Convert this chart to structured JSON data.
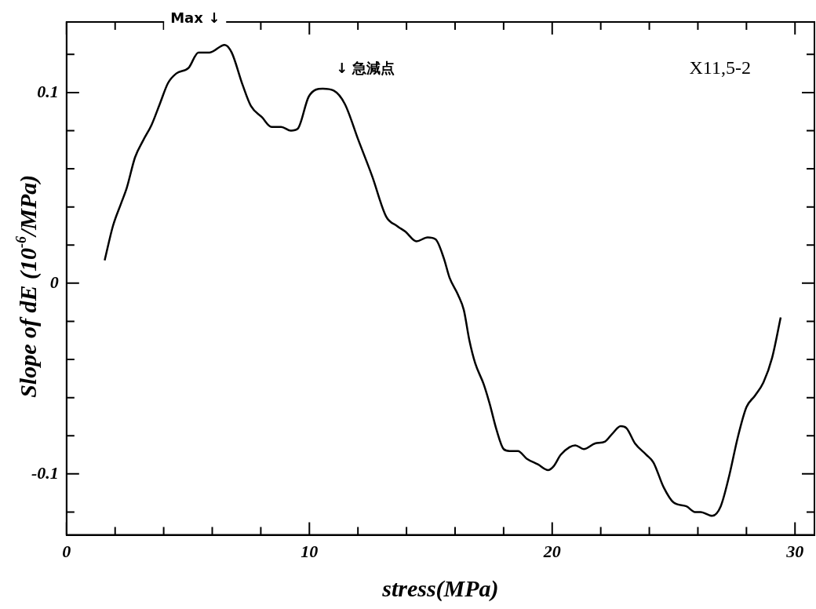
{
  "chart_data": {
    "type": "line",
    "xlabel": "stress(MPa)",
    "ylabel": "Slope of dE (10$^{-6}$/MPa)",
    "annotations": [
      "Max ↓",
      "↓ 急減点",
      "X11,5-2"
    ],
    "x": [
      1.57,
      1.91,
      2.25,
      2.48,
      2.82,
      3.16,
      3.5,
      3.84,
      4.18,
      4.52,
      5.03,
      5.43,
      5.89,
      6.51,
      6.8,
      7.25,
      7.59,
      8.05,
      8.44,
      8.84,
      9.24,
      9.52,
      9.98,
      10.55,
      11.0,
      11.46,
      12.02,
      12.59,
      13.16,
      13.61,
      13.96,
      14.41,
      14.87,
      15.2,
      15.54,
      15.77,
      16.12,
      16.36,
      16.59,
      16.83,
      17.18,
      17.42,
      17.71,
      18.0,
      18.24,
      18.59,
      18.95,
      19.41,
      19.83,
      20.06,
      20.35,
      20.71,
      20.95,
      21.3,
      21.77,
      22.18,
      22.47,
      22.82,
      23.06,
      23.41,
      23.88,
      24.17,
      24.59,
      25.0,
      25.53,
      25.88,
      26.11,
      26.59,
      26.94,
      27.29,
      27.64,
      28.0,
      28.35,
      28.7,
      29.06,
      29.41
    ],
    "series": [
      {
        "color": "#000000",
        "values": [
          0.012,
          0.03,
          0.042,
          0.05,
          0.066,
          0.075,
          0.083,
          0.094,
          0.105,
          0.11,
          0.113,
          0.121,
          0.121,
          0.125,
          0.121,
          0.104,
          0.093,
          0.087,
          0.082,
          0.082,
          0.08,
          0.081,
          0.098,
          0.102,
          0.101,
          0.094,
          0.075,
          0.056,
          0.035,
          0.03,
          0.027,
          0.022,
          0.024,
          0.023,
          0.013,
          0.003,
          -0.006,
          -0.014,
          -0.03,
          -0.042,
          -0.053,
          -0.063,
          -0.077,
          -0.087,
          -0.088,
          -0.088,
          -0.092,
          -0.095,
          -0.098,
          -0.096,
          -0.09,
          -0.086,
          -0.085,
          -0.087,
          -0.084,
          -0.083,
          -0.079,
          -0.075,
          -0.076,
          -0.084,
          -0.09,
          -0.094,
          -0.107,
          -0.115,
          -0.117,
          -0.12,
          -0.12,
          -0.122,
          -0.117,
          -0.101,
          -0.081,
          -0.065,
          -0.059,
          -0.052,
          -0.039,
          -0.018
        ]
      }
    ],
    "xlim": [
      0,
      30.8
    ],
    "xticks": [
      0,
      {
        "value": 2,
        "label": null
      },
      {
        "value": 4,
        "label": null
      },
      {
        "value": 6,
        "label": null
      },
      {
        "value": 8,
        "label": null
      },
      10,
      {
        "value": 12,
        "label": null
      },
      {
        "value": 14,
        "label": null
      },
      {
        "value": 16,
        "label": null
      },
      {
        "value": 18,
        "label": null
      },
      20,
      {
        "value": 22,
        "label": null
      },
      {
        "value": 24,
        "label": null
      },
      {
        "value": 26,
        "label": null
      },
      {
        "value": 28,
        "label": null
      },
      30
    ],
    "ylim": [
      -0.132,
      0.137
    ],
    "yticks": [
      {
        "value": -0.12,
        "label": null
      },
      -0.1,
      {
        "value": -0.08,
        "label": null
      },
      {
        "value": -0.06,
        "label": null
      },
      {
        "value": -0.04,
        "label": null
      },
      {
        "value": -0.02,
        "label": null
      },
      0,
      {
        "value": 0.02,
        "label": null
      },
      {
        "value": 0.04,
        "label": null
      },
      {
        "value": 0.06,
        "label": null
      },
      {
        "value": 0.08,
        "label": null
      },
      0.1,
      {
        "value": 0.12,
        "label": null
      }
    ],
    "grid": false,
    "legend": false,
    "marker": "none",
    "line_style": "solid"
  }
}
